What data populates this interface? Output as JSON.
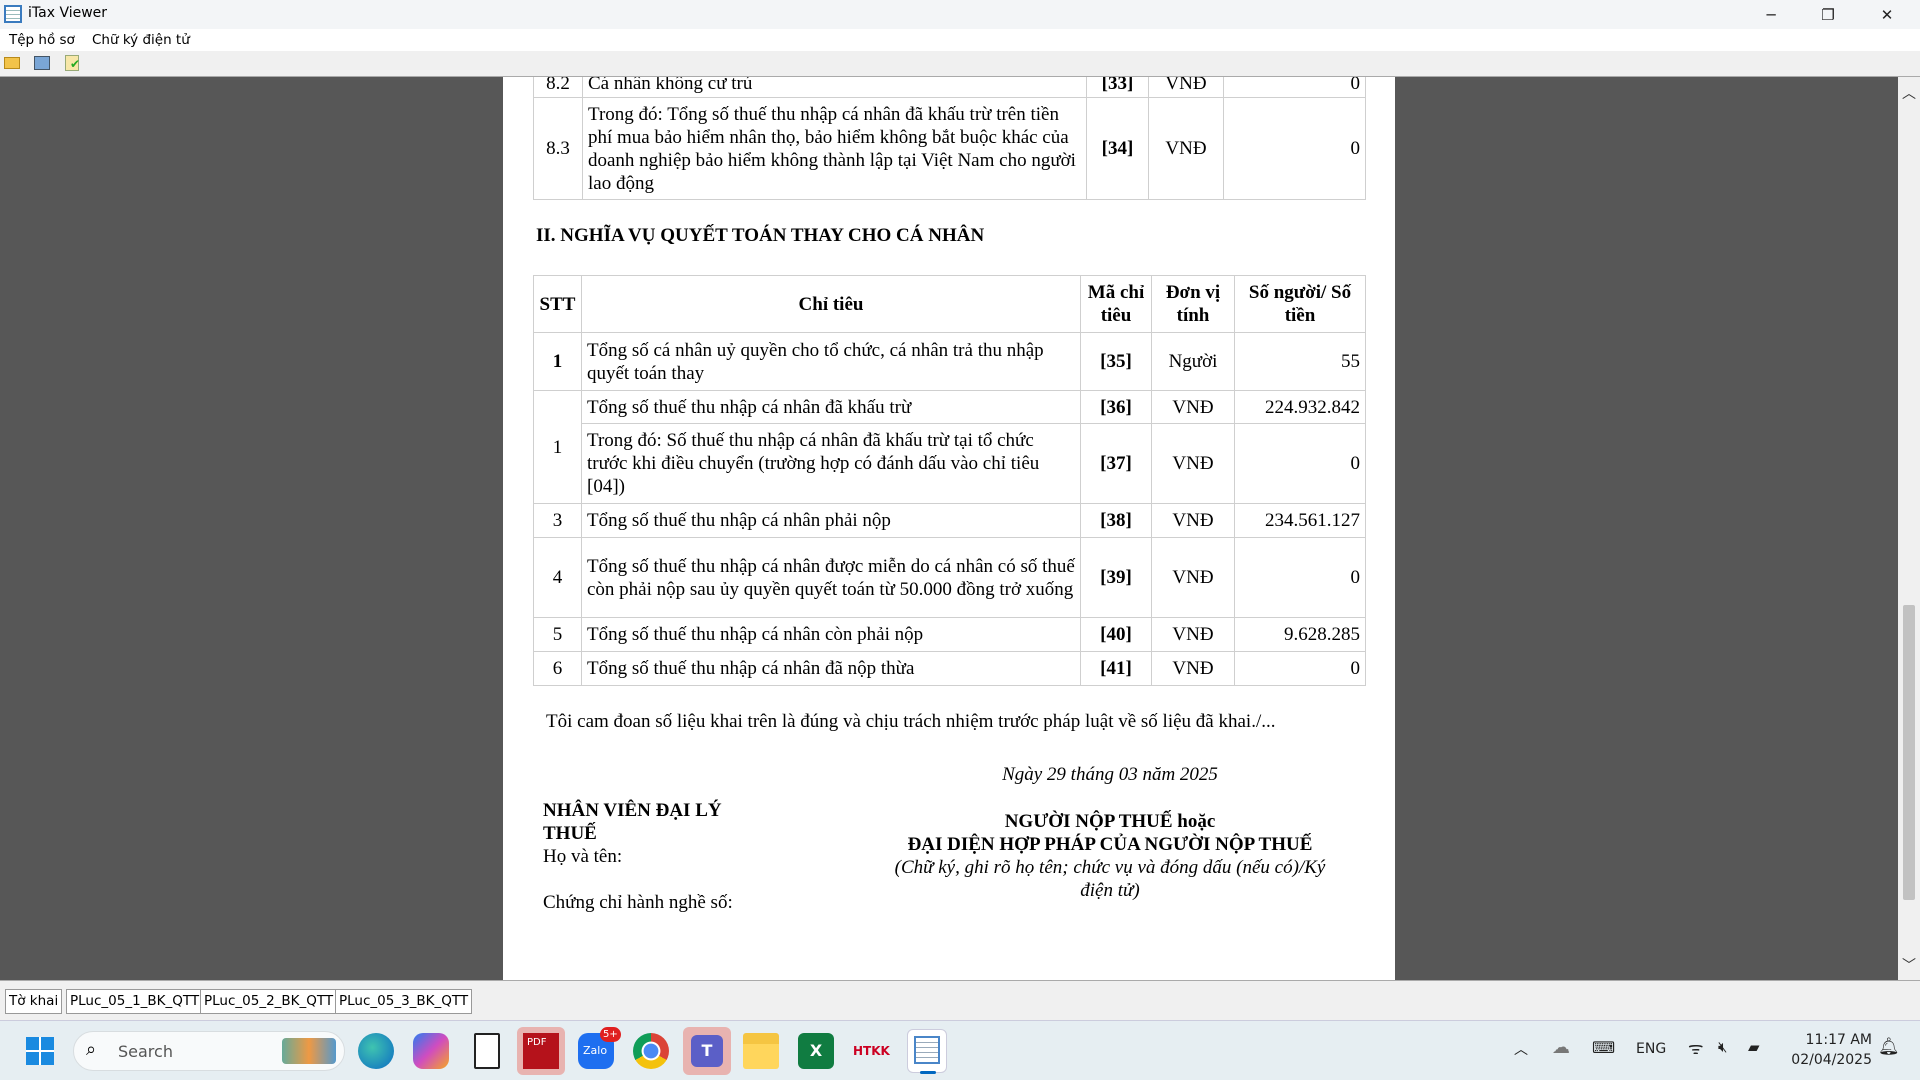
{
  "window": {
    "title": "iTax Viewer",
    "minimize": "─",
    "maximize": "❐",
    "close": "✕"
  },
  "menu": [
    "Tệp hồ sơ",
    "Chữ ký điện tử"
  ],
  "toolbar": [
    "open-folder-icon",
    "print-icon",
    "verify-signature-icon"
  ],
  "top_table": {
    "rows": [
      {
        "stt": "8.2",
        "label": "Cá nhân không cư trú",
        "code": "[33]",
        "unit": "VNĐ",
        "value": "0"
      },
      {
        "stt": "8.3",
        "label": "Trong đó: Tổng số thuế thu nhập cá nhân đã khấu trừ trên tiền phí mua bảo hiểm nhân thọ, bảo hiểm không bắt buộc khác của doanh nghiệp bảo hiểm không thành lập tại Việt Nam cho người lao động",
        "code": "[34]",
        "unit": "VNĐ",
        "value": "0"
      }
    ]
  },
  "section2": {
    "heading": "II. NGHĨA VỤ QUYẾT TOÁN THAY CHO CÁ NHÂN",
    "headers": [
      "STT",
      "Chỉ tiêu",
      "Mã chỉ tiêu",
      "Đơn vị tính",
      "Số người/ Số tiền"
    ],
    "rows": [
      {
        "stt": "1",
        "label": "Tổng số cá nhân uỷ quyền cho tổ chức, cá nhân trả thu nhập quyết toán thay",
        "code": "[35]",
        "unit": "Người",
        "value": "55"
      },
      {
        "stt": "1",
        "label": "Tổng số thuế thu nhập cá nhân đã khấu trừ",
        "code": "[36]",
        "unit": "VNĐ",
        "value": "224.932.842"
      },
      {
        "stt": "",
        "label": "Trong đó: Số thuế thu nhập cá nhân đã khấu trừ tại tổ chức trước khi điều chuyển (trường hợp có đánh dấu vào chỉ tiêu [04])",
        "code": "[37]",
        "unit": "VNĐ",
        "value": "0"
      },
      {
        "stt": "3",
        "label": "Tổng số thuế thu nhập cá nhân phải nộp",
        "code": "[38]",
        "unit": "VNĐ",
        "value": "234.561.127"
      },
      {
        "stt": "4",
        "label": "Tổng số thuế thu nhập cá nhân được miễn do cá nhân có số thuế còn phải nộp sau ủy quyền quyết toán từ 50.000 đồng trở xuống",
        "code": "[39]",
        "unit": "VNĐ",
        "value": "0"
      },
      {
        "stt": "5",
        "label": "Tổng số thuế thu nhập cá nhân còn phải nộp",
        "code": "[40]",
        "unit": "VNĐ",
        "value": "9.628.285"
      },
      {
        "stt": "6",
        "label": "Tổng số thuế thu nhập cá nhân đã nộp thừa",
        "code": "[41]",
        "unit": "VNĐ",
        "value": "0"
      }
    ]
  },
  "declaration": "Tôi cam đoan số liệu khai trên là đúng và chịu trách nhiệm trước pháp luật về số liệu đã khai./...",
  "date": "Ngày 29 tháng 03 năm 2025",
  "agent": {
    "title": "NHÂN VIÊN ĐẠI LÝ THUẾ",
    "name_label": "Họ và tên:",
    "cert_label": "Chứng chỉ hành nghề số:"
  },
  "signer": {
    "line1_bold": "NGƯỜI NỘP THUẾ",
    "line1_rest": " hoặc",
    "line2": "ĐẠI DIỆN HỢP PHÁP CỦA NGƯỜI NỘP THUẾ",
    "note": "(Chữ ký, ghi rõ họ tên; chức vụ và đóng dấu (nếu có)/Ký điện tử)"
  },
  "tabs": [
    "Tờ khai",
    "PLuc_05_1_BK_QTT",
    "PLuc_05_2_BK_QTT",
    "PLuc_05_3_BK_QTT"
  ],
  "taskbar": {
    "search_placeholder": "Search",
    "zalo_badge": "5+",
    "apps": [
      "edge",
      "copilot",
      "notepad",
      "pdf",
      "zalo",
      "chrome",
      "teams",
      "file-explorer",
      "excel",
      "htkk",
      "itax-viewer"
    ]
  },
  "tray": {
    "lang": "ENG",
    "time": "11:17 AM",
    "date": "02/04/2025"
  }
}
